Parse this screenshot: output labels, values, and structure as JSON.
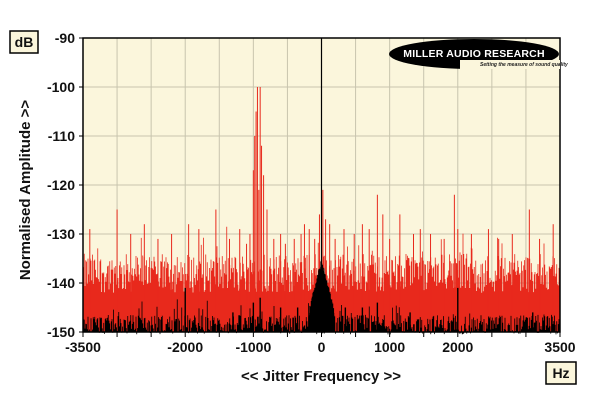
{
  "chart_data": {
    "type": "line",
    "title": "",
    "xlabel": "<< Jitter Frequency >>",
    "ylabel": "Normalised Amplitude >>",
    "x_unit": "Hz",
    "y_unit": "dB",
    "xlim": [
      -3500,
      3500
    ],
    "ylim": [
      -150,
      -90
    ],
    "x_ticks": [
      -3500,
      -2000,
      -1000,
      0,
      1000,
      2000,
      3500
    ],
    "x_tick_labels": [
      "-3500",
      "-2000",
      "-1000",
      "0",
      "1000",
      "2000",
      "3500"
    ],
    "y_ticks": [
      -90,
      -100,
      -110,
      -120,
      -130,
      -140,
      -150
    ],
    "y_tick_labels": [
      "-90",
      "-100",
      "-110",
      "-120",
      "-130",
      "-140",
      "-150"
    ],
    "grid": true,
    "background_color": "#fbf6dc",
    "grid_color": "#c8c4ae",
    "series": [
      {
        "color": "#e8291c",
        "noise_floor_db": -138,
        "spikes": [
          {
            "x": -3400,
            "y": -129
          },
          {
            "x": -3000,
            "y": -125
          },
          {
            "x": -2800,
            "y": -130
          },
          {
            "x": -2600,
            "y": -128
          },
          {
            "x": -2400,
            "y": -131
          },
          {
            "x": -2200,
            "y": -130
          },
          {
            "x": -1950,
            "y": -128
          },
          {
            "x": -1800,
            "y": -129
          },
          {
            "x": -1550,
            "y": -125
          },
          {
            "x": -1350,
            "y": -131
          },
          {
            "x": -1200,
            "y": -129
          },
          {
            "x": -1100,
            "y": -132
          },
          {
            "x": -1050,
            "y": -130
          },
          {
            "x": -1000,
            "y": -117
          },
          {
            "x": -980,
            "y": -110
          },
          {
            "x": -960,
            "y": -105
          },
          {
            "x": -940,
            "y": -100
          },
          {
            "x": -920,
            "y": -121
          },
          {
            "x": -900,
            "y": -100
          },
          {
            "x": -880,
            "y": -112
          },
          {
            "x": -850,
            "y": -118
          },
          {
            "x": -800,
            "y": -125
          },
          {
            "x": -700,
            "y": -131
          },
          {
            "x": -600,
            "y": -130
          },
          {
            "x": -530,
            "y": -132
          },
          {
            "x": -400,
            "y": -131
          },
          {
            "x": -300,
            "y": -130
          },
          {
            "x": -250,
            "y": -128
          },
          {
            "x": -180,
            "y": -129
          },
          {
            "x": -100,
            "y": -131
          },
          {
            "x": -30,
            "y": -126
          },
          {
            "x": 20,
            "y": -121
          },
          {
            "x": 60,
            "y": -127
          },
          {
            "x": 120,
            "y": -128
          },
          {
            "x": 200,
            "y": -131
          },
          {
            "x": 330,
            "y": -129
          },
          {
            "x": 480,
            "y": -130
          },
          {
            "x": 600,
            "y": -128
          },
          {
            "x": 700,
            "y": -129
          },
          {
            "x": 820,
            "y": -122
          },
          {
            "x": 900,
            "y": -126
          },
          {
            "x": 1000,
            "y": -131
          },
          {
            "x": 1150,
            "y": -126
          },
          {
            "x": 1350,
            "y": -130
          },
          {
            "x": 1450,
            "y": -129
          },
          {
            "x": 1600,
            "y": -130
          },
          {
            "x": 1800,
            "y": -131
          },
          {
            "x": 1950,
            "y": -122
          },
          {
            "x": 2000,
            "y": -129
          },
          {
            "x": 2200,
            "y": -130
          },
          {
            "x": 2450,
            "y": -129
          },
          {
            "x": 2600,
            "y": -131
          },
          {
            "x": 2800,
            "y": -130
          },
          {
            "x": 3050,
            "y": -125
          },
          {
            "x": 3200,
            "y": -131
          },
          {
            "x": 3400,
            "y": -128
          }
        ]
      },
      {
        "color": "#000000",
        "noise_floor_db": -148.5,
        "spikes": [
          {
            "x": -2000,
            "y": -141
          },
          {
            "x": -1300,
            "y": -146
          },
          {
            "x": -1000,
            "y": -144
          },
          {
            "x": -900,
            "y": -143
          },
          {
            "x": -600,
            "y": -145
          },
          {
            "x": -350,
            "y": -145
          },
          {
            "x": -100,
            "y": -142
          },
          {
            "x": -50,
            "y": -139
          },
          {
            "x": 0,
            "y": -136
          },
          {
            "x": 50,
            "y": -139
          },
          {
            "x": 100,
            "y": -142
          },
          {
            "x": 350,
            "y": -145
          },
          {
            "x": 600,
            "y": -145
          },
          {
            "x": 820,
            "y": -144
          },
          {
            "x": 1300,
            "y": -146
          },
          {
            "x": 2000,
            "y": -141
          },
          {
            "x": 3100,
            "y": -146
          }
        ]
      }
    ],
    "watermark": {
      "logo_text": "MILLER AUDIO RESEARCH",
      "tagline": "Setting the measure of sound quality"
    }
  }
}
